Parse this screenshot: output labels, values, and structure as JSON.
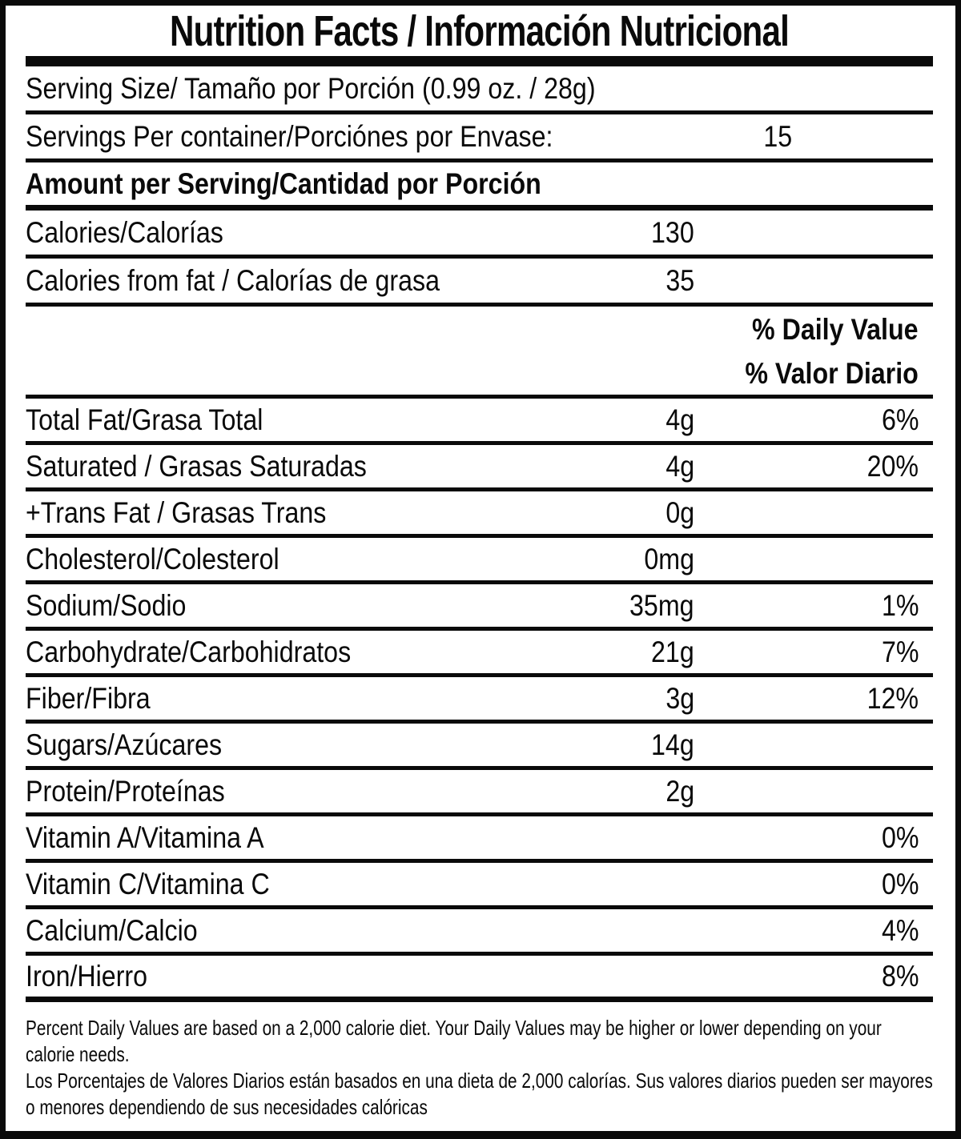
{
  "title": "Nutrition Facts / Información Nutricional",
  "colors": {
    "ink": "#0a0a0a",
    "background": "#ffffff"
  },
  "serving": {
    "serving_size": "Serving Size/ Tamaño por Porción  (0.99 oz. / 28g)",
    "servings_label": "Servings Per container/Porciónes por Envase:",
    "servings_value": "15"
  },
  "section_headers": {
    "amount_per_serving": "Amount per Serving/Cantidad por Porción",
    "daily_value_en": "% Daily Value",
    "daily_value_es": "% Valor Diario"
  },
  "rows": [
    {
      "label": "Calories/Calorías",
      "value": "130",
      "pct": ""
    },
    {
      "label": "Calories from fat / Calorías de grasa",
      "value": "35",
      "pct": ""
    },
    {
      "label": "Total Fat/Grasa Total",
      "value": "4g",
      "pct": "6%"
    },
    {
      "label": "Saturated / Grasas Saturadas",
      "value": "4g",
      "pct": "20%"
    },
    {
      "label": "+Trans Fat / Grasas Trans",
      "value": "0g",
      "pct": ""
    },
    {
      "label": "Cholesterol/Colesterol",
      "value": "0mg",
      "pct": ""
    },
    {
      "label": "Sodium/Sodio",
      "value": "35mg",
      "pct": "1%"
    },
    {
      "label": "Carbohydrate/Carbohidratos",
      "value": "21g",
      "pct": "7%"
    },
    {
      "label": "Fiber/Fibra",
      "value": "3g",
      "pct": "12%"
    },
    {
      "label": "Sugars/Azúcares",
      "value": "14g",
      "pct": ""
    },
    {
      "label": "Protein/Proteínas",
      "value": "2g",
      "pct": ""
    },
    {
      "label": "Vitamin A/Vitamina A",
      "value": "",
      "pct": "0%"
    },
    {
      "label": "Vitamin C/Vitamina C",
      "value": "",
      "pct": "0%"
    },
    {
      "label": "Calcium/Calcio",
      "value": "",
      "pct": "4%"
    },
    {
      "label": "Iron/Hierro",
      "value": "",
      "pct": "8%"
    }
  ],
  "footnote": {
    "en": "Percent Daily Values are based on a 2,000 calorie diet. Your Daily Values may be higher or lower depending on your calorie needs.",
    "es": "Los Porcentajes de Valores Diarios están basados en una dieta de 2,000 calorías. Sus valores diarios pueden ser mayores o menores dependiendo de sus necesidades calóricas"
  }
}
